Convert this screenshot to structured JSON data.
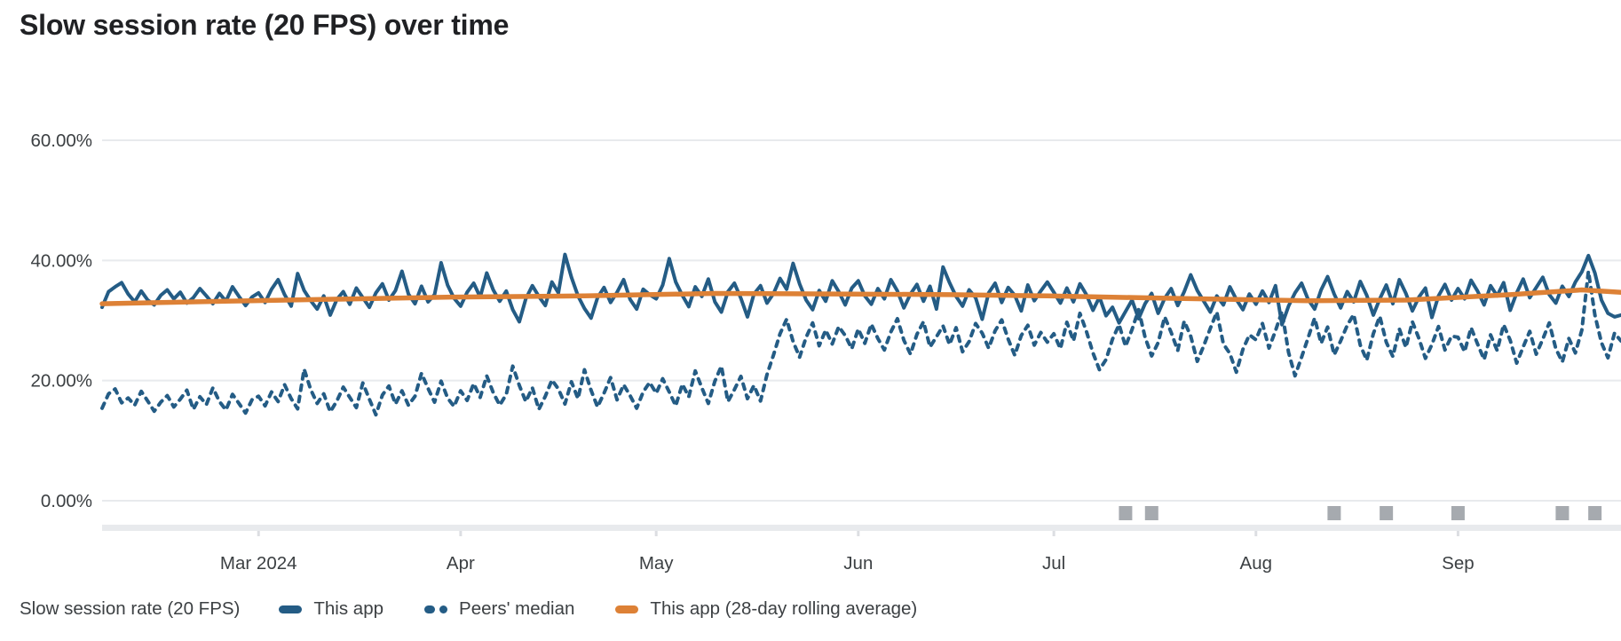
{
  "title": "Slow session rate (20 FPS) over time",
  "legend": {
    "metric_label": "Slow session rate (20 FPS)",
    "items": [
      {
        "label": "This app",
        "style": "solid",
        "color": "#245c85"
      },
      {
        "label": "Peers' median",
        "style": "dashed",
        "color": "#245c85"
      },
      {
        "label": "This app (28-day rolling average)",
        "style": "solid",
        "color": "#dd8136"
      }
    ]
  },
  "chart_data": {
    "type": "line",
    "title": "Slow session rate (20 FPS) over time",
    "x_unit": "day",
    "x_start": "Feb 6 2024",
    "x_range_days": 234,
    "grid": "horizontal",
    "legend_position": "bottom",
    "y_axis": {
      "min": 0,
      "max": 60,
      "tick_values": [
        0,
        20,
        40,
        60
      ],
      "tick_labels": [
        "0.00%",
        "20.00%",
        "40.00%",
        "60.00%"
      ]
    },
    "x_ticks": [
      {
        "label": "Mar 2024",
        "day": 24
      },
      {
        "label": "Apr",
        "day": 55
      },
      {
        "label": "May",
        "day": 85
      },
      {
        "label": "Jun",
        "day": 116
      },
      {
        "label": "Jul",
        "day": 146
      },
      {
        "label": "Aug",
        "day": 177
      },
      {
        "label": "Sep",
        "day": 208
      }
    ],
    "event_markers": {
      "color": "#a6aaaf",
      "days": [
        157,
        161,
        189,
        197,
        208,
        224,
        229
      ]
    },
    "series": [
      {
        "name": "Peers' median",
        "style": "dashed",
        "color": "#245c85",
        "values": [
          15.4,
          17.8,
          18.6,
          16.3,
          17.1,
          15.9,
          18.2,
          16.6,
          14.9,
          16.4,
          17.5,
          15.6,
          16.9,
          18.4,
          15.2,
          17.3,
          16.0,
          18.8,
          16.5,
          15.1,
          17.7,
          16.2,
          14.6,
          16.8,
          17.4,
          15.8,
          18.1,
          16.5,
          19.3,
          17.0,
          15.3,
          21.9,
          18.5,
          16.2,
          17.8,
          14.8,
          16.6,
          18.9,
          17.2,
          15.5,
          19.6,
          16.9,
          14.3,
          17.6,
          19.1,
          16.1,
          18.3,
          15.9,
          17.4,
          21.2,
          18.7,
          16.4,
          19.9,
          17.1,
          15.7,
          18.3,
          16.7,
          19.5,
          17.2,
          20.8,
          18.0,
          15.9,
          17.7,
          22.4,
          19.2,
          16.5,
          18.8,
          15.2,
          17.4,
          20.1,
          18.6,
          16.1,
          19.8,
          17.0,
          21.8,
          18.4,
          15.6,
          17.9,
          20.5,
          16.8,
          19.3,
          17.5,
          15.4,
          18.1,
          19.7,
          17.9,
          20.3,
          18.1,
          15.8,
          19.4,
          17.3,
          21.6,
          18.8,
          16.2,
          19.9,
          22.4,
          16.5,
          18.5,
          20.7,
          17.0,
          19.2,
          16.6,
          21.0,
          24.3,
          27.8,
          30.2,
          26.5,
          23.9,
          27.2,
          29.6,
          25.8,
          28.4,
          26.1,
          29.0,
          27.5,
          25.3,
          28.6,
          26.2,
          29.4,
          27.0,
          25.1,
          28.1,
          30.3,
          26.7,
          24.4,
          27.7,
          29.8,
          25.6,
          27.3,
          29.1,
          26.0,
          28.8,
          24.8,
          26.5,
          29.5,
          27.9,
          25.4,
          28.3,
          30.1,
          26.9,
          24.2,
          27.5,
          29.2,
          25.9,
          28.0,
          26.4,
          27.8,
          25.3,
          29.7,
          26.6,
          31.2,
          28.2,
          24.6,
          21.8,
          23.5,
          26.9,
          29.3,
          25.7,
          28.5,
          31.8,
          27.2,
          24.1,
          26.3,
          30.6,
          28.0,
          25.0,
          29.9,
          27.4,
          23.2,
          25.8,
          28.7,
          31.4,
          26.1,
          24.5,
          21.4,
          25.2,
          27.6,
          26.8,
          29.5,
          25.4,
          28.3,
          31.5,
          24.7,
          20.8,
          23.9,
          27.1,
          30.4,
          26.2,
          28.9,
          24.3,
          26.6,
          29.2,
          31.0,
          25.9,
          23.4,
          27.8,
          30.7,
          26.4,
          24.0,
          28.6,
          25.5,
          29.8,
          27.0,
          23.7,
          26.0,
          29.0,
          25.1,
          27.4,
          27.2,
          24.8,
          28.8,
          26.1,
          23.5,
          27.6,
          25.0,
          29.3,
          26.7,
          22.9,
          25.6,
          28.2,
          24.4,
          26.9,
          29.6,
          25.3,
          23.1,
          27.0,
          24.6,
          28.4,
          38.2,
          30.9,
          26.3,
          23.8,
          27.9,
          26.6
        ]
      },
      {
        "name": "This app",
        "style": "solid",
        "color": "#245c85",
        "values": [
          32.2,
          34.8,
          35.6,
          36.3,
          34.4,
          33.1,
          34.9,
          33.4,
          32.6,
          34.2,
          35.1,
          33.6,
          34.7,
          32.9,
          33.8,
          35.3,
          34.1,
          32.8,
          34.5,
          33.2,
          35.6,
          34.0,
          32.5,
          33.9,
          34.6,
          33.0,
          35.2,
          36.8,
          34.3,
          32.4,
          37.8,
          35.0,
          33.3,
          31.9,
          34.1,
          30.9,
          33.5,
          34.8,
          32.7,
          35.4,
          33.8,
          32.2,
          34.6,
          36.1,
          33.4,
          35.0,
          38.2,
          34.4,
          32.8,
          35.7,
          33.1,
          34.3,
          39.6,
          35.9,
          33.7,
          32.4,
          34.7,
          36.2,
          33.9,
          37.9,
          35.1,
          33.2,
          34.9,
          31.8,
          29.8,
          33.6,
          35.8,
          34.0,
          32.5,
          36.4,
          34.6,
          41.0,
          37.2,
          34.1,
          32.0,
          30.4,
          33.8,
          35.5,
          33.0,
          34.7,
          36.8,
          33.5,
          31.9,
          35.2,
          34.3,
          33.6,
          35.9,
          40.3,
          36.4,
          34.2,
          32.3,
          35.6,
          34.0,
          36.9,
          33.1,
          31.4,
          34.8,
          36.2,
          33.7,
          30.6,
          34.4,
          35.8,
          32.9,
          34.5,
          37.0,
          35.2,
          39.5,
          36.1,
          33.4,
          31.8,
          35.0,
          33.2,
          36.6,
          34.8,
          32.6,
          35.4,
          36.6,
          34.1,
          32.7,
          35.3,
          33.6,
          36.8,
          34.9,
          32.1,
          34.4,
          36.0,
          33.2,
          35.7,
          31.9,
          38.9,
          36.3,
          34.0,
          32.4,
          35.1,
          33.8,
          30.2,
          34.6,
          36.2,
          33.0,
          35.5,
          34.2,
          31.6,
          35.9,
          33.3,
          34.9,
          36.4,
          34.7,
          32.9,
          35.4,
          33.1,
          36.1,
          34.3,
          31.7,
          33.9,
          30.8,
          32.2,
          29.6,
          31.5,
          33.4,
          30.3,
          32.8,
          34.5,
          31.2,
          33.7,
          35.3,
          32.5,
          34.8,
          37.6,
          35.0,
          33.2,
          31.4,
          34.1,
          32.6,
          35.6,
          33.5,
          31.8,
          34.4,
          32.7,
          34.9,
          33.0,
          35.8,
          29.3,
          32.4,
          34.6,
          36.2,
          33.5,
          31.9,
          35.1,
          37.3,
          34.4,
          32.1,
          34.8,
          33.1,
          36.5,
          34.2,
          30.9,
          33.6,
          35.9,
          32.8,
          36.8,
          34.5,
          31.6,
          33.9,
          35.4,
          30.5,
          34.1,
          36.0,
          33.4,
          35.3,
          33.6,
          36.7,
          34.9,
          32.6,
          35.8,
          34.1,
          36.3,
          31.7,
          34.6,
          36.9,
          33.8,
          35.5,
          37.2,
          34.3,
          32.9,
          35.7,
          34.0,
          36.4,
          38.1,
          40.8,
          37.9,
          33.4,
          31.2,
          30.6,
          30.9
        ]
      },
      {
        "name": "This app (28-day rolling average)",
        "style": "solid",
        "color": "#dd8136",
        "control_points": [
          [
            0,
            32.8
          ],
          [
            23,
            33.3
          ],
          [
            54,
            33.9
          ],
          [
            74,
            34.1
          ],
          [
            94,
            34.5
          ],
          [
            115,
            34.4
          ],
          [
            130,
            34.3
          ],
          [
            145,
            34.1
          ],
          [
            164,
            33.7
          ],
          [
            185,
            33.3
          ],
          [
            200,
            33.4
          ],
          [
            216,
            34.3
          ],
          [
            227,
            35.1
          ],
          [
            233,
            34.7
          ]
        ]
      }
    ]
  },
  "colors": {
    "app_line": "#245c85",
    "peers_line": "#245c85",
    "rolling_line": "#dd8136",
    "grid_line": "#e8eaed",
    "axis_band": "#e8eaed",
    "axis_tick": "#dcdee2",
    "event_marker": "#a6aaaf",
    "axis_text": "#3c4043",
    "title_text": "#202124"
  }
}
